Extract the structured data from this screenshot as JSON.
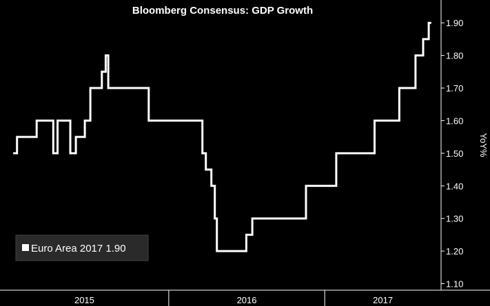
{
  "chart_data": {
    "type": "line",
    "title": "Bloomberg Consensus: GDP Growth",
    "xlabel": "",
    "ylabel": "YoY%",
    "x_tick_labels": [
      "2015",
      "2016",
      "2017"
    ],
    "y_tick_labels": [
      "1.10",
      "1.20",
      "1.30",
      "1.40",
      "1.50",
      "1.60",
      "1.70",
      "1.80",
      "1.90"
    ],
    "ylim": [
      1.08,
      1.97
    ],
    "xlim": [
      "2014-12",
      "2017-10"
    ],
    "y_axis_side": "right",
    "grid": false,
    "legend_position": "bottom-left",
    "line_style": "step",
    "colors": {
      "background": "#000000",
      "line": "#ffffff",
      "text": "#ffffff",
      "legend_bg": "#2a2a2a"
    },
    "series": [
      {
        "name": "Euro Area 2017",
        "last_value_label": "1.90",
        "points": [
          [
            "2015-01-01",
            1.5
          ],
          [
            "2015-01-10",
            1.55
          ],
          [
            "2015-02-25",
            1.6
          ],
          [
            "2015-04-05",
            1.5
          ],
          [
            "2015-04-15",
            1.6
          ],
          [
            "2015-05-15",
            1.5
          ],
          [
            "2015-05-28",
            1.55
          ],
          [
            "2015-06-18",
            1.6
          ],
          [
            "2015-07-01",
            1.7
          ],
          [
            "2015-07-28",
            1.75
          ],
          [
            "2015-08-06",
            1.8
          ],
          [
            "2015-08-12",
            1.7
          ],
          [
            "2015-11-15",
            1.6
          ],
          [
            "2016-03-20",
            1.5
          ],
          [
            "2016-03-28",
            1.45
          ],
          [
            "2016-04-10",
            1.4
          ],
          [
            "2016-04-18",
            1.3
          ],
          [
            "2016-04-23",
            1.2
          ],
          [
            "2016-07-01",
            1.25
          ],
          [
            "2016-07-15",
            1.3
          ],
          [
            "2016-11-18",
            1.4
          ],
          [
            "2017-01-28",
            1.5
          ],
          [
            "2017-04-28",
            1.6
          ],
          [
            "2017-06-25",
            1.7
          ],
          [
            "2017-08-02",
            1.8
          ],
          [
            "2017-08-20",
            1.85
          ],
          [
            "2017-09-02",
            1.9
          ],
          [
            "2017-09-08",
            1.9
          ]
        ]
      }
    ]
  },
  "legend": {
    "label": "Euro Area 2017 1.90"
  }
}
